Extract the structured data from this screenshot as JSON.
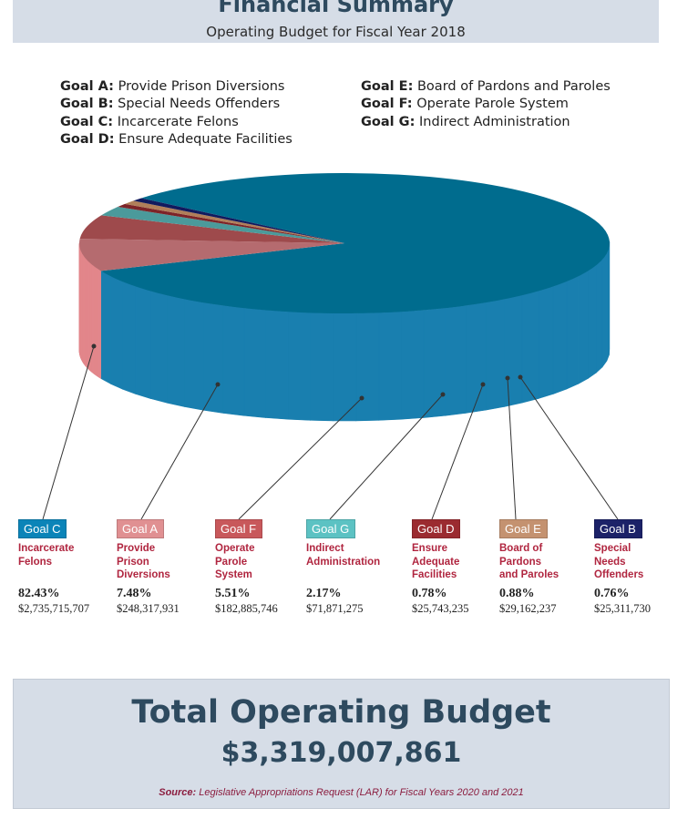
{
  "header": {
    "title": "Financial Summary",
    "subtitle": "Operating Budget for Fiscal Year 2018"
  },
  "goal_legend": {
    "left": [
      {
        "key": "Goal A:",
        "text": "Provide Prison Diversions"
      },
      {
        "key": "Goal B:",
        "text": "Special Needs Offenders"
      },
      {
        "key": "Goal C:",
        "text": "Incarcerate Felons"
      },
      {
        "key": "Goal D:",
        "text": "Ensure Adequate Facilities"
      }
    ],
    "right": [
      {
        "key": "Goal E:",
        "text": "Board of Pardons and Paroles"
      },
      {
        "key": "Goal F:",
        "text": "Operate Parole System"
      },
      {
        "key": "Goal G:",
        "text": "Indirect Administration"
      }
    ]
  },
  "chart_data": {
    "type": "pie",
    "style": "3d",
    "slices": [
      {
        "label": "Goal C",
        "name": "Incarcerate Felons",
        "percent": 82.43,
        "amount": "$2,735,715,707",
        "percent_label": "82.43%",
        "color": "#006c8e"
      },
      {
        "label": "Goal A",
        "name": "Provide Prison Diversions",
        "percent": 7.48,
        "amount": "$248,317,931",
        "percent_label": "7.48%",
        "color": "#b56b6f"
      },
      {
        "label": "Goal F",
        "name": "Operate Parole System",
        "percent": 5.51,
        "amount": "$182,885,746",
        "percent_label": "5.51%",
        "color": "#9e4a4c"
      },
      {
        "label": "Goal G",
        "name": "Indirect Administration",
        "percent": 2.17,
        "amount": "$71,871,275",
        "percent_label": "2.17%",
        "color": "#4b9a9b"
      },
      {
        "label": "Goal D",
        "name": "Ensure Adequate Facilities",
        "percent": 0.78,
        "amount": "$25,743,235",
        "percent_label": "0.78%",
        "color": "#7d2428"
      },
      {
        "label": "Goal E",
        "name": "Board of Pardons and Paroles",
        "percent": 0.88,
        "amount": "$29,162,237",
        "percent_label": "0.88%",
        "color": "#b07f5a"
      },
      {
        "label": "Goal B",
        "name": "Special Needs Offenders",
        "percent": 0.76,
        "amount": "$25,311,730",
        "percent_label": "0.76%",
        "color": "#111a5e"
      }
    ]
  },
  "cards": [
    {
      "badge": "Goal C",
      "desc": "Incarcerate\nFelons",
      "pct": "82.43%",
      "amt": "$2,735,715,707",
      "color": "#0b84b8"
    },
    {
      "badge": "Goal A",
      "desc": "Provide\nPrison\nDiversions",
      "pct": "7.48%",
      "amt": "$248,317,931",
      "color": "#e09092"
    },
    {
      "badge": "Goal F",
      "desc": "Operate\nParole\nSystem",
      "pct": "5.51%",
      "amt": "$182,885,746",
      "color": "#c8585b"
    },
    {
      "badge": "Goal G",
      "desc": "Indirect\nAdministration",
      "pct": "2.17%",
      "amt": "$71,871,275",
      "color": "#5cc2c3"
    },
    {
      "badge": "Goal D",
      "desc": "Ensure\nAdequate\nFacilities",
      "pct": "0.78%",
      "amt": "$25,743,235",
      "color": "#9b2b30"
    },
    {
      "badge": "Goal E",
      "desc": "Board of\nPardons\nand Paroles",
      "pct": "0.88%",
      "amt": "$29,162,237",
      "color": "#c49270"
    },
    {
      "badge": "Goal B",
      "desc": "Special\nNeeds\nOffenders",
      "pct": "0.76%",
      "amt": "$25,311,730",
      "color": "#1c2268"
    }
  ],
  "total": {
    "title": "Total Operating Budget",
    "amount": "$3,319,007,861",
    "source_label": "Source:",
    "source_text": "Legislative Appropriations Request (LAR) for Fiscal Years 2020 and 2021"
  }
}
